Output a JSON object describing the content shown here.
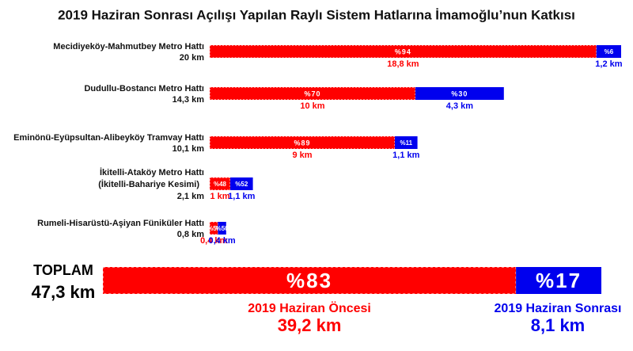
{
  "chart_data": {
    "type": "bar",
    "title": "2019 Haziran Sonrası Açılışı Yapılan Raylı Sistem Hatlarına İmamoğlu’nun Katkısı",
    "categories": [
      "Mecidiyeköy-Mahmutbey Metro Hattı",
      "Dudullu-Bostancı Metro Hattı",
      "Eminönü-Eyüpsultan-Alibeyköy Tramvay Hattı",
      "İkitelli-Ataköy Metro Hattı",
      "Rumeli-Hisarüstü-Aşiyan Füniküler Hattı"
    ],
    "category_notes": [
      null,
      null,
      null,
      "(İkitelli-Bahariye Kesimi)",
      null
    ],
    "total_labels": [
      "20 km",
      "14,3 km",
      "10,1 km",
      "2,1 km",
      "0,8 km"
    ],
    "series": [
      {
        "name": "2019 Haziran Öncesi",
        "color": "#ff0000",
        "values": [
          18.8,
          10,
          9,
          1,
          0.4
        ],
        "value_labels": [
          "18,8 km",
          "10 km",
          "9 km",
          "1 km",
          "0,4 km"
        ],
        "shares": [
          94,
          70,
          89,
          48,
          50
        ],
        "share_labels": [
          "%94",
          "%70",
          "%89",
          "%48",
          "%50"
        ]
      },
      {
        "name": "2019 Haziran Sonrası",
        "color": "#0000ee",
        "values": [
          1.2,
          4.3,
          1.1,
          1.1,
          0.4
        ],
        "value_labels": [
          "1,2 km",
          "4,3 km",
          "1,1 km",
          "1,1 km",
          "0,4 km"
        ],
        "shares": [
          6,
          30,
          11,
          52,
          50
        ],
        "share_labels": [
          "%6",
          "%30",
          "%11",
          "%52",
          "%50"
        ]
      }
    ],
    "overall": {
      "label": "TOPLAM",
      "value": 47.3,
      "value_label": "47,3 km",
      "values": [
        39.2,
        8.1
      ],
      "value_labels": [
        "39,2 km",
        "8,1 km"
      ],
      "shares": [
        83,
        17
      ],
      "share_labels": [
        "%83",
        "%17"
      ]
    }
  }
}
